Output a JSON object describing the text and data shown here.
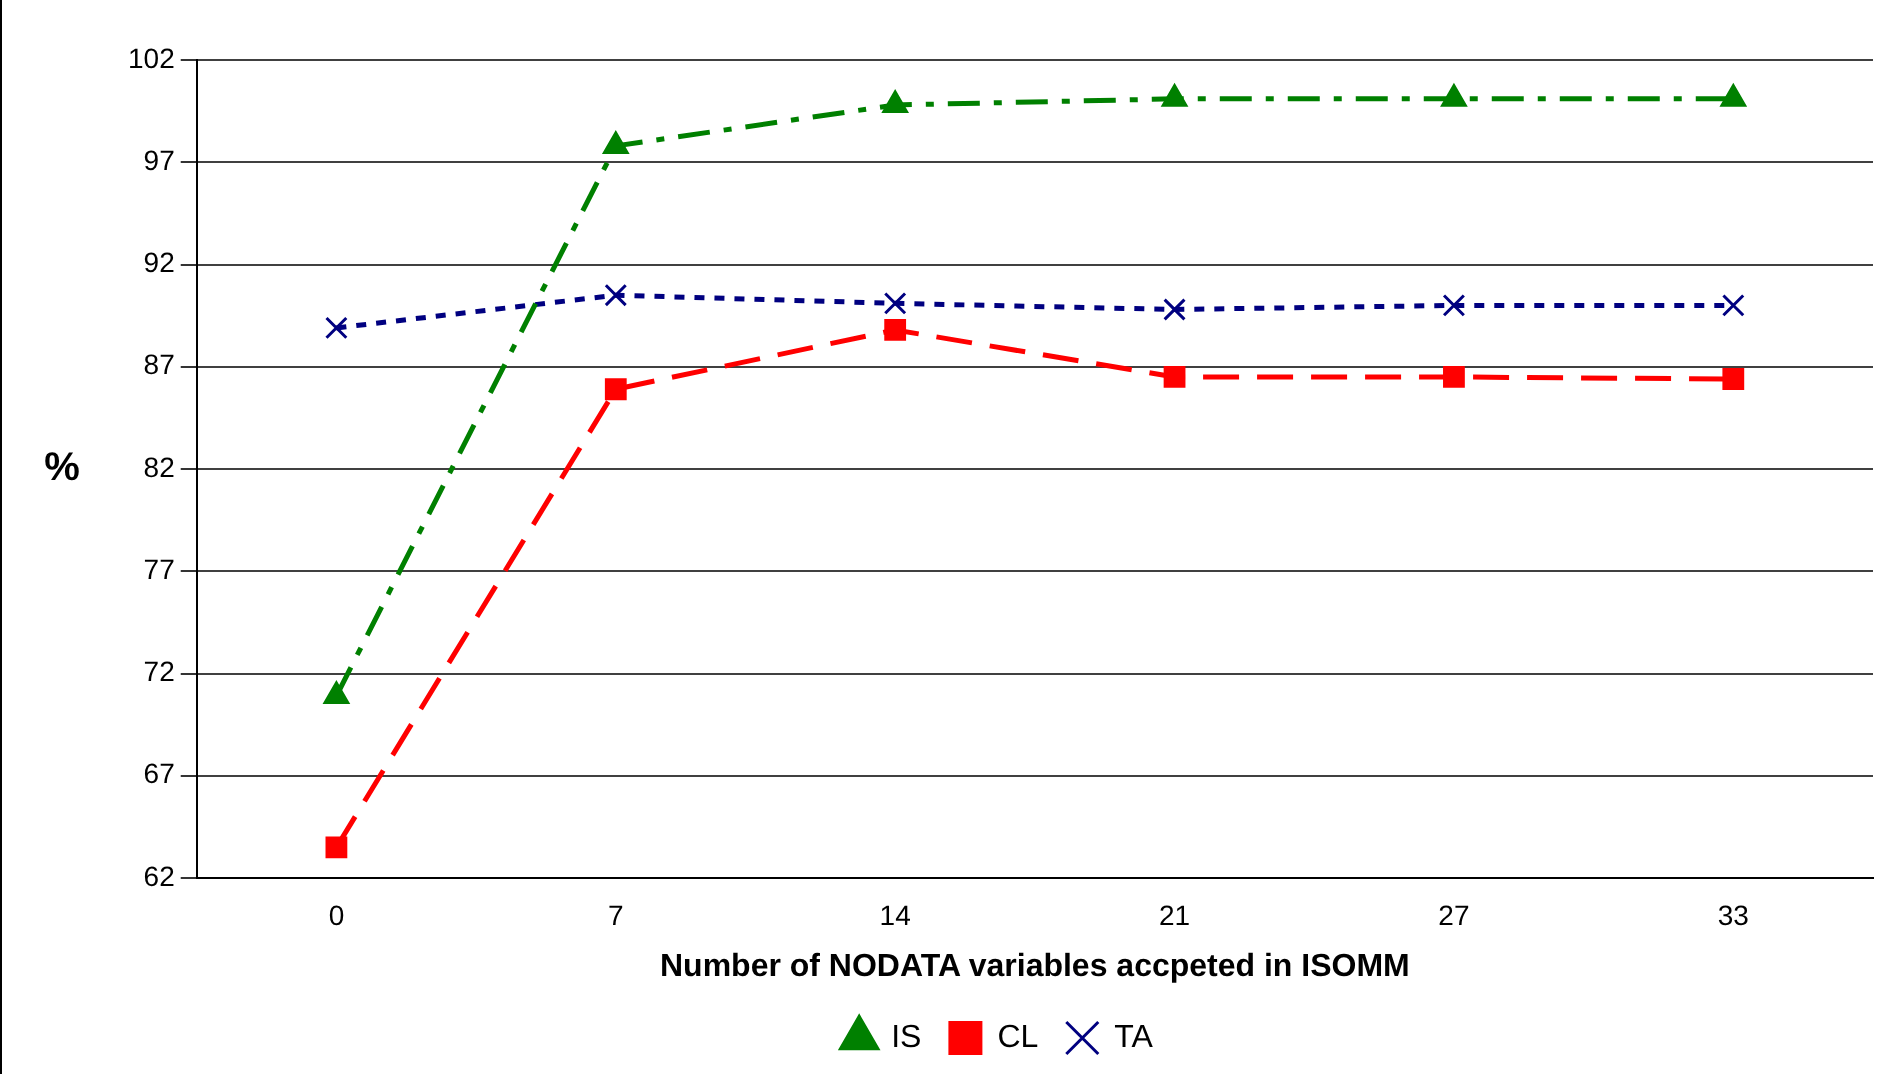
{
  "chart_data": {
    "type": "line",
    "xlabel": "Number of NODATA variables accpeted in ISOMM",
    "ylabel": "%",
    "categories": [
      "0",
      "7",
      "14",
      "21",
      "27",
      "33"
    ],
    "series": [
      {
        "name": "IS",
        "color": "#008000",
        "values": [
          70.9,
          97.8,
          99.8,
          100.1,
          100.1,
          100.1
        ],
        "marker": "triangle",
        "line_style": "dashdot"
      },
      {
        "name": "CL",
        "color": "#ff0000",
        "values": [
          63.5,
          85.9,
          88.8,
          86.5,
          86.5,
          86.4
        ],
        "marker": "square",
        "line_style": "dashed"
      },
      {
        "name": "TA",
        "color": "#000080",
        "values": [
          88.9,
          90.5,
          90.1,
          89.8,
          90.0,
          90.0
        ],
        "marker": "cross",
        "line_style": "dotted"
      }
    ],
    "ylim": [
      62,
      102
    ],
    "yticks": [
      62,
      67,
      72,
      77,
      82,
      87,
      92,
      97,
      102
    ],
    "grid": "y",
    "legend": "bottom"
  }
}
